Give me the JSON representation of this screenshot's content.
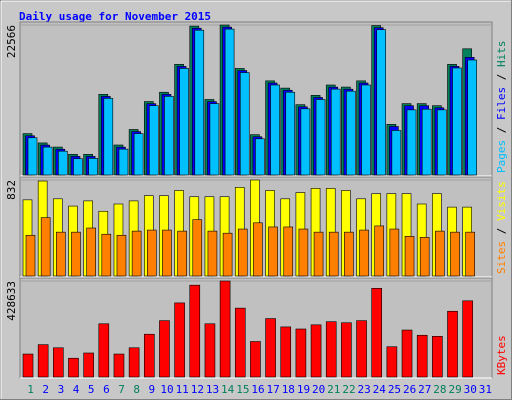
{
  "chart_data": {
    "type": "bar",
    "title": "Daily usage for November 2015",
    "categories": [
      "1",
      "2",
      "3",
      "4",
      "5",
      "6",
      "7",
      "8",
      "9",
      "10",
      "11",
      "12",
      "13",
      "14",
      "15",
      "16",
      "17",
      "18",
      "19",
      "20",
      "21",
      "22",
      "23",
      "24",
      "25",
      "26",
      "27",
      "28",
      "29",
      "30",
      "31"
    ],
    "category_colors": [
      "#00805c",
      "#0000ff",
      "#0000ff",
      "#0000ff",
      "#0000ff",
      "#0000ff",
      "#00805c",
      "#00805c",
      "#0000ff",
      "#0000ff",
      "#0000ff",
      "#0000ff",
      "#0000ff",
      "#00805c",
      "#00805c",
      "#0000ff",
      "#0000ff",
      "#0000ff",
      "#0000ff",
      "#0000ff",
      "#00805c",
      "#00805c",
      "#0000ff",
      "#0000ff",
      "#0000ff",
      "#0000ff",
      "#0000ff",
      "#00805c",
      "#00805c",
      "#0000ff",
      "#0000ff"
    ],
    "panels": [
      {
        "ylim": [
          0,
          22566
        ],
        "yticks": [
          22566
        ],
        "series": [
          {
            "name": "Hits",
            "color": "#00805c",
            "values": [
              6225,
              4825,
              4202,
              3113,
              3113,
              12139,
              4513,
              6848,
              11050,
              12450,
              16652,
              22400,
              11361,
              22566,
              16030,
              6070,
              14162,
              13073,
              10583,
              11984,
              13540,
              13229,
              14162,
              22480,
              7626,
              10739,
              10739,
              10427,
              16652,
              18987,
              null
            ]
          },
          {
            "name": "Files",
            "color": "#0000ff",
            "values": [
              5900,
              4500,
              3880,
              2800,
              2790,
              11820,
              4190,
              6530,
              10730,
              12130,
              16330,
              22080,
              11040,
              22250,
              15710,
              5750,
              13840,
              12750,
              10260,
              11660,
              13220,
              12910,
              13840,
              22160,
              7300,
              10420,
              10420,
              10110,
              16340,
              17700,
              null
            ]
          },
          {
            "name": "Pages",
            "color": "#00c0ff",
            "values": [
              5600,
              4200,
              3580,
              2450,
              2500,
              11530,
              3890,
              6230,
              10430,
              11830,
              16030,
              21780,
              10740,
              21950,
              15410,
              5450,
              13540,
              12450,
              9960,
              11360,
              12920,
              12610,
              13540,
              21860,
              6700,
              9800,
              9900,
              9800,
              16100,
              17300,
              null
            ]
          }
        ]
      },
      {
        "ylim": [
          0,
          832
        ],
        "yticks": [
          832
        ],
        "series": [
          {
            "name": "Visits",
            "color": "#ffff00",
            "values": [
              660,
              823,
              669,
              606,
              651,
              561,
              624,
              651,
              696,
              696,
              741,
              687,
              687,
              687,
              768,
              832,
              741,
              669,
              723,
              759,
              759,
              741,
              669,
              714,
              714,
              714,
              624,
              714,
              597,
              597,
              null
            ]
          },
          {
            "name": "Sites",
            "color": "#ff8000",
            "values": [
              353,
              506,
              380,
              380,
              416,
              362,
              353,
              389,
              398,
              398,
              389,
              488,
              389,
              371,
              407,
              461,
              425,
              425,
              407,
              380,
              380,
              380,
              398,
              434,
              407,
              344,
              335,
              389,
              380,
              380,
              null
            ]
          }
        ]
      },
      {
        "ylim": [
          0,
          428633
        ],
        "yticks": [
          428633
        ],
        "series": [
          {
            "name": "KBytes",
            "color": "#ff0000",
            "values": [
              102500,
              144430,
              130450,
              83860,
              107160,
              237610,
              102500,
              130450,
              191020,
              251590,
              330790,
              409990,
              237610,
              428633,
              307490,
              158410,
              260900,
              223630,
              214310,
              232950,
              246930,
              242270,
              251590,
              396010,
              135110,
              209650,
              186360,
              181700,
              293520,
              340100,
              null
            ]
          }
        ]
      }
    ]
  }
}
